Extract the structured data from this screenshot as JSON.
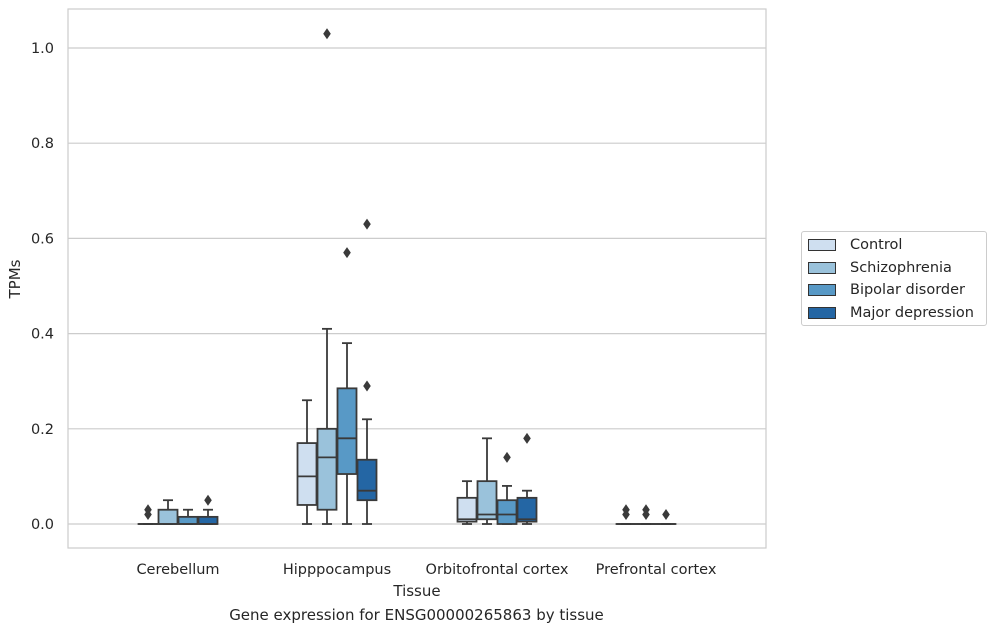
{
  "chart_data": {
    "type": "box",
    "title": "",
    "xlabel": "Tissue",
    "ylabel": "TPMs",
    "caption": "Gene expression for ENSG00000265863 by tissue",
    "categories": [
      "Cerebellum",
      "Hipppocampus",
      "Orbitofrontal cortex",
      "Prefrontal cortex"
    ],
    "yticks": [
      "0.0",
      "0.2",
      "0.4",
      "0.6",
      "0.8",
      "1.0"
    ],
    "ylim": [
      -0.05,
      1.08
    ],
    "grid": "horizontal",
    "legend_position": "right",
    "series": [
      {
        "name": "Control",
        "color": "#cfdff0",
        "boxes": [
          {
            "q1": 0,
            "median": 0,
            "q3": 0,
            "whisker_low": 0,
            "whisker_high": 0,
            "outliers": [
              0.02,
              0.03
            ]
          },
          {
            "q1": 0.04,
            "median": 0.1,
            "q3": 0.17,
            "whisker_low": 0,
            "whisker_high": 0.26,
            "outliers": []
          },
          {
            "q1": 0.005,
            "median": 0.01,
            "q3": 0.055,
            "whisker_low": 0,
            "whisker_high": 0.09,
            "outliers": []
          },
          {
            "q1": 0,
            "median": 0,
            "q3": 0,
            "whisker_low": 0,
            "whisker_high": 0,
            "outliers": [
              0.02,
              0.03
            ]
          }
        ]
      },
      {
        "name": "Schizophrenia",
        "color": "#9ac2db",
        "boxes": [
          {
            "q1": 0,
            "median": 0,
            "q3": 0.03,
            "whisker_low": 0,
            "whisker_high": 0.05,
            "outliers": []
          },
          {
            "q1": 0.03,
            "median": 0.14,
            "q3": 0.2,
            "whisker_low": 0,
            "whisker_high": 0.41,
            "outliers": [
              1.03
            ]
          },
          {
            "q1": 0.01,
            "median": 0.02,
            "q3": 0.09,
            "whisker_low": 0,
            "whisker_high": 0.18,
            "outliers": []
          },
          {
            "q1": 0,
            "median": 0,
            "q3": 0,
            "whisker_low": 0,
            "whisker_high": 0,
            "outliers": [
              0.02,
              0.03
            ]
          }
        ]
      },
      {
        "name": "Bipolar disorder",
        "color": "#5899c6",
        "boxes": [
          {
            "q1": 0,
            "median": 0,
            "q3": 0.015,
            "whisker_low": 0,
            "whisker_high": 0.03,
            "outliers": []
          },
          {
            "q1": 0.105,
            "median": 0.18,
            "q3": 0.285,
            "whisker_low": 0,
            "whisker_high": 0.38,
            "outliers": [
              0.57
            ]
          },
          {
            "q1": 0,
            "median": 0.02,
            "q3": 0.05,
            "whisker_low": 0,
            "whisker_high": 0.08,
            "outliers": [
              0.14
            ]
          },
          {
            "q1": 0,
            "median": 0,
            "q3": 0,
            "whisker_low": 0,
            "whisker_high": 0,
            "outliers": [
              0.02
            ]
          }
        ]
      },
      {
        "name": "Major depression",
        "color": "#2466a4",
        "boxes": [
          {
            "q1": 0,
            "median": 0,
            "q3": 0.015,
            "whisker_low": 0,
            "whisker_high": 0.03,
            "outliers": [
              0.05
            ]
          },
          {
            "q1": 0.05,
            "median": 0.07,
            "q3": 0.135,
            "whisker_low": 0,
            "whisker_high": 0.22,
            "outliers": [
              0.29,
              0.63
            ]
          },
          {
            "q1": 0.005,
            "median": 0.01,
            "q3": 0.055,
            "whisker_low": 0,
            "whisker_high": 0.07,
            "outliers": [
              0.18
            ]
          },
          null
        ]
      }
    ]
  }
}
